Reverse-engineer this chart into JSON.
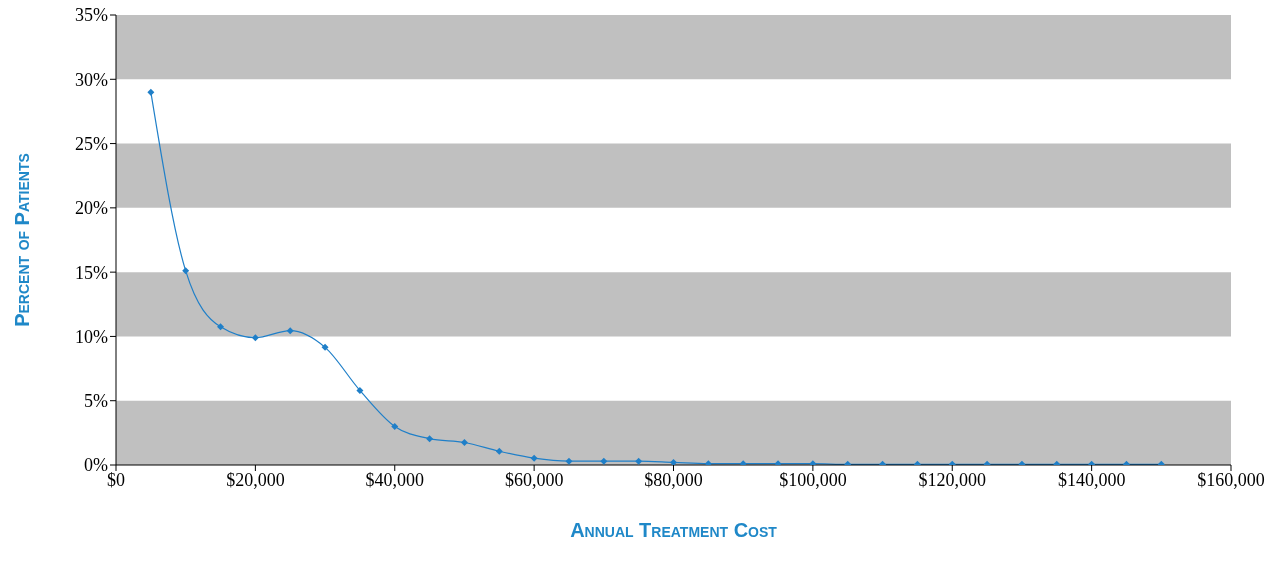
{
  "chart_data": {
    "type": "line",
    "xlabel": "Annual Treatment Cost",
    "ylabel": "Percent of Patients",
    "x": [
      5000,
      10000,
      15000,
      20000,
      25000,
      30000,
      35000,
      40000,
      45000,
      50000,
      55000,
      60000,
      65000,
      70000,
      75000,
      80000,
      85000,
      90000,
      95000,
      100000,
      105000,
      110000,
      115000,
      120000,
      125000,
      130000,
      135000,
      140000,
      145000,
      150000
    ],
    "series": [
      {
        "color": "#1f7fc8",
        "values": [
          29.0,
          15.1,
          10.75,
          9.9,
          10.45,
          9.15,
          5.8,
          3.0,
          2.05,
          1.75,
          1.07,
          0.53,
          0.3,
          0.3,
          0.3,
          0.2,
          0.1,
          0.1,
          0.1,
          0.1,
          0.05,
          0.05,
          0.05,
          0.05,
          0.05,
          0.05,
          0.05,
          0.05,
          0.05,
          0.05
        ]
      }
    ],
    "xlim": [
      0,
      160000
    ],
    "xticks": [
      {
        "value": 0,
        "label": "$0"
      },
      {
        "value": 20000,
        "label": "$20,000"
      },
      {
        "value": 40000,
        "label": "$40,000"
      },
      {
        "value": 60000,
        "label": "$60,000"
      },
      {
        "value": 80000,
        "label": "$80,000"
      },
      {
        "value": 100000,
        "label": "$100,000"
      },
      {
        "value": 120000,
        "label": "$120,000"
      },
      {
        "value": 140000,
        "label": "$140,000"
      },
      {
        "value": 160000,
        "label": "$160,000"
      }
    ],
    "ylim": [
      0,
      35
    ],
    "yticks": [
      {
        "value": 0,
        "label": "0%"
      },
      {
        "value": 5,
        "label": "5%"
      },
      {
        "value": 10,
        "label": "10%"
      },
      {
        "value": 15,
        "label": "15%"
      },
      {
        "value": 20,
        "label": "20%"
      },
      {
        "value": 25,
        "label": "25%"
      },
      {
        "value": 30,
        "label": "30%"
      },
      {
        "value": 35,
        "label": "35%"
      }
    ],
    "bands": [
      {
        "axis": "y",
        "from": 0,
        "to": 5,
        "color": "#c0c0c0"
      },
      {
        "axis": "y",
        "from": 10,
        "to": 15,
        "color": "#c0c0c0"
      },
      {
        "axis": "y",
        "from": 20,
        "to": 25,
        "color": "#c0c0c0"
      },
      {
        "axis": "y",
        "from": 30,
        "to": 35,
        "color": "#c0c0c0"
      }
    ],
    "grid": false,
    "legend": false,
    "marker": "diamond",
    "line_style": "solid"
  }
}
